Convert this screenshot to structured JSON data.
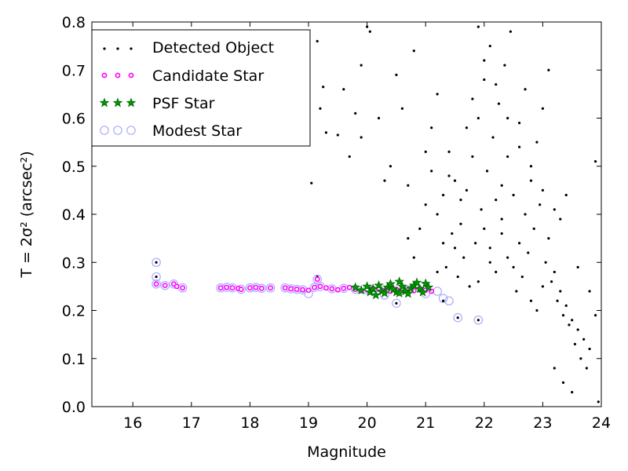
{
  "chart_data": {
    "type": "scatter",
    "xlabel": "Magnitude",
    "ylabel": "T = 2σ² (arcsec²)",
    "xlim": [
      15.3,
      24.0
    ],
    "ylim": [
      0.0,
      0.8
    ],
    "xticks": [
      "16",
      "17",
      "18",
      "19",
      "20",
      "21",
      "22",
      "23",
      "24"
    ],
    "yticks": [
      "0.0",
      "0.1",
      "0.2",
      "0.3",
      "0.4",
      "0.5",
      "0.6",
      "0.7",
      "0.8"
    ],
    "grid": false,
    "legend_position": "top-left",
    "colors": {
      "detected": "#000000",
      "candidate": "#ff00ff",
      "psf_face": "#009900",
      "psf_edge": "#006600",
      "modest": "#aaaaff"
    },
    "series": [
      {
        "name": "Detected Object",
        "marker": "dot",
        "points": [
          [
            16.4,
            0.3
          ],
          [
            16.4,
            0.27
          ],
          [
            19.15,
            0.27
          ],
          [
            19.1,
            0.25
          ],
          [
            20.0,
            0.25
          ],
          [
            20.4,
            0.25
          ],
          [
            20.9,
            0.24
          ],
          [
            21.1,
            0.24
          ],
          [
            20.5,
            0.215
          ],
          [
            21.3,
            0.22
          ],
          [
            21.55,
            0.185
          ],
          [
            21.9,
            0.18
          ],
          [
            19.05,
            0.465
          ],
          [
            19.5,
            0.565
          ],
          [
            19.6,
            0.66
          ],
          [
            19.7,
            0.52
          ],
          [
            19.8,
            0.61
          ],
          [
            19.9,
            0.71
          ],
          [
            20.0,
            0.79
          ],
          [
            20.05,
            0.78
          ],
          [
            19.2,
            0.62
          ],
          [
            19.25,
            0.665
          ],
          [
            19.3,
            0.57
          ],
          [
            19.15,
            0.76
          ],
          [
            19.9,
            0.56
          ],
          [
            20.2,
            0.6
          ],
          [
            20.3,
            0.47
          ],
          [
            20.4,
            0.5
          ],
          [
            20.5,
            0.69
          ],
          [
            20.6,
            0.62
          ],
          [
            20.7,
            0.46
          ],
          [
            20.8,
            0.74
          ],
          [
            20.9,
            0.37
          ],
          [
            21.0,
            0.42
          ],
          [
            21.1,
            0.58
          ],
          [
            21.2,
            0.65
          ],
          [
            21.3,
            0.44
          ],
          [
            21.4,
            0.53
          ],
          [
            21.5,
            0.33
          ],
          [
            21.6,
            0.38
          ],
          [
            21.7,
            0.45
          ],
          [
            21.8,
            0.52
          ],
          [
            21.9,
            0.6
          ],
          [
            22.0,
            0.68
          ],
          [
            22.1,
            0.75
          ],
          [
            22.2,
            0.43
          ],
          [
            22.3,
            0.36
          ],
          [
            22.4,
            0.31
          ],
          [
            22.5,
            0.29
          ],
          [
            22.6,
            0.34
          ],
          [
            22.7,
            0.4
          ],
          [
            22.8,
            0.47
          ],
          [
            22.9,
            0.55
          ],
          [
            23.0,
            0.62
          ],
          [
            23.1,
            0.7
          ],
          [
            23.2,
            0.28
          ],
          [
            23.3,
            0.24
          ],
          [
            23.4,
            0.21
          ],
          [
            23.5,
            0.18
          ],
          [
            23.6,
            0.16
          ],
          [
            23.7,
            0.14
          ],
          [
            23.8,
            0.12
          ],
          [
            23.9,
            0.19
          ],
          [
            21.35,
            0.29
          ],
          [
            21.45,
            0.36
          ],
          [
            21.55,
            0.27
          ],
          [
            21.65,
            0.31
          ],
          [
            21.75,
            0.25
          ],
          [
            21.85,
            0.34
          ],
          [
            21.95,
            0.41
          ],
          [
            22.05,
            0.49
          ],
          [
            22.15,
            0.56
          ],
          [
            22.25,
            0.63
          ],
          [
            22.35,
            0.71
          ],
          [
            22.45,
            0.78
          ],
          [
            22.55,
            0.24
          ],
          [
            22.65,
            0.27
          ],
          [
            22.75,
            0.32
          ],
          [
            22.85,
            0.37
          ],
          [
            22.95,
            0.42
          ],
          [
            23.05,
            0.3
          ],
          [
            23.15,
            0.26
          ],
          [
            23.25,
            0.22
          ],
          [
            23.35,
            0.19
          ],
          [
            23.45,
            0.17
          ],
          [
            23.55,
            0.13
          ],
          [
            23.65,
            0.1
          ],
          [
            23.75,
            0.08
          ],
          [
            23.2,
            0.08
          ],
          [
            23.35,
            0.05
          ],
          [
            23.5,
            0.03
          ],
          [
            23.95,
            0.01
          ],
          [
            21.1,
            0.49
          ],
          [
            21.2,
            0.4
          ],
          [
            21.3,
            0.34
          ],
          [
            21.5,
            0.47
          ],
          [
            21.7,
            0.58
          ],
          [
            21.8,
            0.64
          ],
          [
            22.0,
            0.37
          ],
          [
            22.1,
            0.33
          ],
          [
            22.2,
            0.28
          ],
          [
            22.3,
            0.46
          ],
          [
            22.4,
            0.52
          ],
          [
            22.6,
            0.59
          ],
          [
            22.7,
            0.66
          ],
          [
            22.8,
            0.22
          ],
          [
            22.9,
            0.2
          ],
          [
            23.0,
            0.25
          ],
          [
            23.1,
            0.35
          ],
          [
            23.3,
            0.39
          ],
          [
            23.4,
            0.44
          ],
          [
            23.6,
            0.29
          ],
          [
            23.8,
            0.24
          ],
          [
            23.9,
            0.51
          ],
          [
            21.9,
            0.79
          ],
          [
            22.0,
            0.72
          ],
          [
            22.2,
            0.67
          ],
          [
            22.4,
            0.6
          ],
          [
            22.6,
            0.54
          ],
          [
            22.8,
            0.5
          ],
          [
            23.0,
            0.45
          ],
          [
            23.2,
            0.41
          ],
          [
            22.5,
            0.44
          ],
          [
            22.3,
            0.39
          ],
          [
            22.1,
            0.3
          ],
          [
            21.9,
            0.26
          ],
          [
            21.6,
            0.43
          ],
          [
            21.4,
            0.48
          ],
          [
            21.0,
            0.53
          ],
          [
            20.8,
            0.31
          ],
          [
            20.7,
            0.35
          ],
          [
            21.2,
            0.28
          ]
        ]
      },
      {
        "name": "Candidate Star",
        "marker": "small-circle",
        "points": [
          [
            16.4,
            0.255
          ],
          [
            16.55,
            0.252
          ],
          [
            16.7,
            0.255
          ],
          [
            16.75,
            0.25
          ],
          [
            16.85,
            0.247
          ],
          [
            17.5,
            0.247
          ],
          [
            17.6,
            0.248
          ],
          [
            17.7,
            0.247
          ],
          [
            17.8,
            0.246
          ],
          [
            17.85,
            0.244
          ],
          [
            18.0,
            0.247
          ],
          [
            18.1,
            0.248
          ],
          [
            18.2,
            0.246
          ],
          [
            18.35,
            0.247
          ],
          [
            18.6,
            0.247
          ],
          [
            18.7,
            0.245
          ],
          [
            18.8,
            0.244
          ],
          [
            18.9,
            0.243
          ],
          [
            19.0,
            0.242
          ],
          [
            19.1,
            0.248
          ],
          [
            19.2,
            0.25
          ],
          [
            19.3,
            0.247
          ],
          [
            19.4,
            0.245
          ],
          [
            19.5,
            0.243
          ],
          [
            19.6,
            0.246
          ],
          [
            19.7,
            0.248
          ],
          [
            19.8,
            0.244
          ],
          [
            19.9,
            0.241
          ],
          [
            20.0,
            0.243
          ],
          [
            20.1,
            0.246
          ],
          [
            20.2,
            0.244
          ],
          [
            20.3,
            0.242
          ],
          [
            20.4,
            0.24
          ],
          [
            20.5,
            0.244
          ],
          [
            20.6,
            0.245
          ],
          [
            20.7,
            0.243
          ],
          [
            20.8,
            0.241
          ],
          [
            20.9,
            0.246
          ],
          [
            21.0,
            0.242
          ],
          [
            21.1,
            0.24
          ],
          [
            19.15,
            0.265
          ]
        ]
      },
      {
        "name": "PSF Star",
        "marker": "star",
        "points": [
          [
            19.8,
            0.248
          ],
          [
            19.9,
            0.242
          ],
          [
            20.0,
            0.25
          ],
          [
            20.05,
            0.238
          ],
          [
            20.1,
            0.245
          ],
          [
            20.2,
            0.252
          ],
          [
            20.25,
            0.24
          ],
          [
            20.3,
            0.236
          ],
          [
            20.35,
            0.248
          ],
          [
            20.4,
            0.255
          ],
          [
            20.45,
            0.244
          ],
          [
            20.5,
            0.238
          ],
          [
            20.55,
            0.26
          ],
          [
            20.6,
            0.25
          ],
          [
            20.65,
            0.24
          ],
          [
            20.7,
            0.235
          ],
          [
            20.75,
            0.246
          ],
          [
            20.8,
            0.252
          ],
          [
            20.85,
            0.258
          ],
          [
            20.9,
            0.245
          ],
          [
            20.95,
            0.238
          ],
          [
            21.0,
            0.256
          ],
          [
            21.05,
            0.248
          ],
          [
            20.15,
            0.232
          ],
          [
            20.55,
            0.236
          ]
        ]
      },
      {
        "name": "Modest Star",
        "marker": "open-circle",
        "points": [
          [
            16.4,
            0.27
          ],
          [
            16.4,
            0.3
          ],
          [
            16.4,
            0.255
          ],
          [
            16.55,
            0.252
          ],
          [
            16.7,
            0.255
          ],
          [
            16.85,
            0.247
          ],
          [
            17.5,
            0.247
          ],
          [
            17.6,
            0.248
          ],
          [
            17.7,
            0.247
          ],
          [
            17.85,
            0.244
          ],
          [
            18.0,
            0.247
          ],
          [
            18.1,
            0.248
          ],
          [
            18.2,
            0.246
          ],
          [
            18.35,
            0.247
          ],
          [
            18.6,
            0.247
          ],
          [
            18.7,
            0.245
          ],
          [
            18.8,
            0.244
          ],
          [
            18.9,
            0.243
          ],
          [
            19.0,
            0.235
          ],
          [
            19.1,
            0.248
          ],
          [
            19.15,
            0.265
          ],
          [
            19.2,
            0.25
          ],
          [
            19.4,
            0.245
          ],
          [
            19.6,
            0.246
          ],
          [
            19.8,
            0.244
          ],
          [
            20.0,
            0.243
          ],
          [
            20.3,
            0.232
          ],
          [
            20.5,
            0.215
          ],
          [
            20.7,
            0.243
          ],
          [
            21.0,
            0.235
          ],
          [
            21.2,
            0.24
          ],
          [
            21.3,
            0.225
          ],
          [
            21.4,
            0.22
          ],
          [
            21.55,
            0.185
          ],
          [
            21.9,
            0.18
          ]
        ]
      }
    ]
  }
}
